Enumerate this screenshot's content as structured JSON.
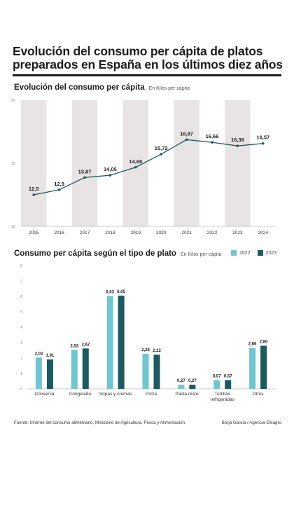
{
  "title": "Evolución del consumo per cápita de platos preparados en España en los últimos diez años",
  "colors": {
    "bar2022": "#6ec6d0",
    "bar2023": "#1a5a61",
    "line": "#1a5a61",
    "band": "#e8e4e4"
  },
  "chart_data": [
    {
      "type": "line",
      "title": "Evolución del consumo per cápita",
      "subtitle": "En Kilos per cápita",
      "x": [
        "2015",
        "2016",
        "2017",
        "2018",
        "2019",
        "2020",
        "2021",
        "2022",
        "2023",
        "2024"
      ],
      "values": [
        12.5,
        12.9,
        13.87,
        14.05,
        14.68,
        15.72,
        16.87,
        16.66,
        16.38,
        16.57
      ],
      "value_labels": [
        "12,5",
        "12,9",
        "13,87",
        "14,05",
        "14,68",
        "15,72",
        "16,87",
        "16,66",
        "16,38",
        "16,57"
      ],
      "yticks": [
        "10",
        "15",
        "20"
      ],
      "ylim": [
        10,
        20
      ],
      "grid": "alternating vertical bands"
    },
    {
      "type": "bar",
      "title": "Consumo per cápita según el tipo de plato",
      "subtitle": "En Kilos per cápita",
      "categories": [
        "Conserva",
        "Congelado",
        "Sopas y cremas",
        "Pizza",
        "Pasta resto",
        "Tortillas refrigeradas",
        "Otros"
      ],
      "category_lines": [
        [
          "Conserva"
        ],
        [
          "Congelado"
        ],
        [
          "Sopas y cremas"
        ],
        [
          "Pizza"
        ],
        [
          "Pasta resto"
        ],
        [
          "Tortillas",
          "refrigeradas"
        ],
        [
          "Otros"
        ]
      ],
      "series": [
        {
          "name": "2022",
          "values": [
            2.03,
            2.53,
            6.03,
            2.28,
            0.27,
            0.57,
            2.66
          ],
          "labels": [
            "2,03",
            "2,53",
            "6,03",
            "2,28",
            "0,27",
            "0,57",
            "2,66"
          ]
        },
        {
          "name": "2023",
          "values": [
            1.91,
            2.62,
            6.05,
            2.22,
            0.27,
            0.57,
            2.8
          ],
          "labels": [
            "1,91",
            "2,62",
            "6,05",
            "2,22",
            "0,27",
            "0,57",
            "2,80"
          ]
        }
      ],
      "yticks": [
        "0",
        "1",
        "2",
        "3",
        "4",
        "5",
        "6",
        "7",
        "8"
      ],
      "ylim": [
        0,
        8
      ],
      "legend": "top-right"
    }
  ],
  "footer": {
    "source": "Fuente: Informe del consumo alimentario, Ministerio de Agricultura, Pesca y Alimentación",
    "credit": "Borja García / Agencia Efeagro"
  }
}
